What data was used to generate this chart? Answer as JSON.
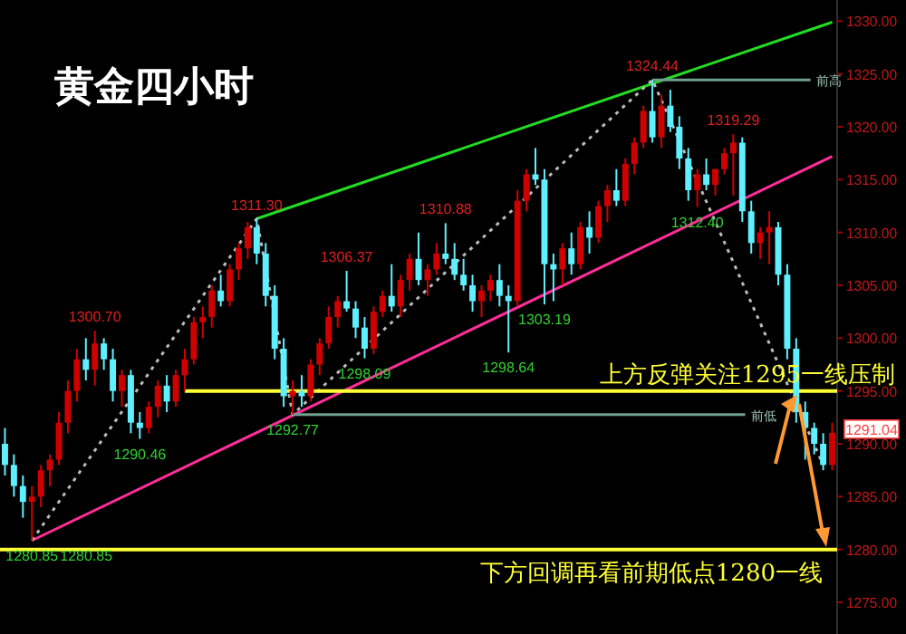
{
  "chart_data": {
    "type": "candlestick",
    "title": "黄金四小时",
    "tick_labels": "y",
    "grid": false,
    "ylim": [
      1272,
      1332
    ],
    "yticks": [
      {
        "value": 1275,
        "label": "1275.00"
      },
      {
        "value": 1280,
        "label": "1280.00"
      },
      {
        "value": 1285,
        "label": "1285.00"
      },
      {
        "value": 1290,
        "label": "1290.00"
      },
      {
        "value": 1295,
        "label": "1295.00"
      },
      {
        "value": 1300,
        "label": "1300.00"
      },
      {
        "value": 1305,
        "label": "1305.00"
      },
      {
        "value": 1310,
        "label": "1310.00"
      },
      {
        "value": 1315,
        "label": "1315.00"
      },
      {
        "value": 1320,
        "label": "1320.00"
      },
      {
        "value": 1325,
        "label": "1325.00"
      },
      {
        "value": 1330,
        "label": "1330.00"
      }
    ],
    "categories": [
      null,
      null,
      null,
      null,
      null,
      null,
      null,
      null,
      null,
      null,
      null,
      null,
      null,
      null,
      null,
      null,
      null,
      null,
      null,
      null,
      null,
      null,
      null,
      null,
      null,
      null,
      null,
      null,
      null,
      null,
      null,
      null,
      null,
      null,
      null,
      null,
      null,
      null,
      null,
      null,
      null,
      null,
      null,
      null,
      null,
      null,
      null,
      null,
      null,
      null,
      null,
      null,
      null,
      null,
      null,
      null,
      null,
      null,
      null,
      null,
      null,
      null,
      null,
      null,
      null,
      null,
      null,
      null,
      null,
      null,
      null,
      null,
      null,
      null,
      null,
      null,
      null,
      null,
      null,
      null,
      null,
      null,
      null,
      null,
      null,
      null,
      null,
      null,
      null,
      null,
      null,
      null,
      null
    ],
    "ohlc": [
      [
        1290,
        1291.5,
        1287,
        1288
      ],
      [
        1288,
        1289,
        1285,
        1286
      ],
      [
        1286,
        1287,
        1283,
        1284.5
      ],
      [
        1284.5,
        1286,
        1280.85,
        1285
      ],
      [
        1285,
        1288,
        1284,
        1287.5
      ],
      [
        1287.5,
        1289,
        1286,
        1288.5
      ],
      [
        1288.5,
        1293,
        1288,
        1292
      ],
      [
        1292,
        1296,
        1291,
        1295
      ],
      [
        1295,
        1299,
        1294,
        1298
      ],
      [
        1298,
        1300,
        1296,
        1297
      ],
      [
        1297,
        1300.7,
        1295.5,
        1299.5
      ],
      [
        1299.5,
        1300,
        1297,
        1298
      ],
      [
        1298,
        1299,
        1294,
        1295
      ],
      [
        1295,
        1297,
        1293.5,
        1296.5
      ],
      [
        1296.5,
        1297,
        1291,
        1292
      ],
      [
        1292,
        1293,
        1290.46,
        1291.5
      ],
      [
        1291.5,
        1294,
        1291,
        1293.5
      ],
      [
        1293.5,
        1296,
        1292.5,
        1295.5
      ],
      [
        1295.5,
        1296.5,
        1293,
        1294
      ],
      [
        1294,
        1297,
        1293.5,
        1296.5
      ],
      [
        1296.5,
        1299,
        1295,
        1298
      ],
      [
        1298,
        1302,
        1297.5,
        1301.5
      ],
      [
        1301.5,
        1303,
        1300,
        1302
      ],
      [
        1302,
        1305,
        1301,
        1304.5
      ],
      [
        1304.5,
        1306,
        1303,
        1303.5
      ],
      [
        1303.5,
        1307,
        1303,
        1306.5
      ],
      [
        1306.5,
        1309,
        1305.5,
        1308.5
      ],
      [
        1308.5,
        1311,
        1307.5,
        1310.5
      ],
      [
        1310.5,
        1311.3,
        1307,
        1308
      ],
      [
        1308,
        1309,
        1303,
        1304
      ],
      [
        1304,
        1305,
        1298,
        1299
      ],
      [
        1299,
        1300,
        1293.5,
        1294.5
      ],
      [
        1294.5,
        1296,
        1292.77,
        1295
      ],
      [
        1295,
        1296.5,
        1293.5,
        1294.5
      ],
      [
        1294.5,
        1298,
        1294,
        1297.5
      ],
      [
        1297.5,
        1300,
        1296.5,
        1299.5
      ],
      [
        1299.5,
        1303,
        1299,
        1302
      ],
      [
        1302,
        1304,
        1301,
        1303.5
      ],
      [
        1303.5,
        1306.37,
        1302.5,
        1302.8
      ],
      [
        1302.8,
        1303.5,
        1300,
        1301
      ],
      [
        1301,
        1302,
        1298.09,
        1299
      ],
      [
        1299,
        1303,
        1298.5,
        1302.5
      ],
      [
        1302.5,
        1304.5,
        1302,
        1304
      ],
      [
        1304,
        1307,
        1302.5,
        1303
      ],
      [
        1303,
        1306,
        1302,
        1305.5
      ],
      [
        1305.5,
        1308,
        1304.5,
        1307.5
      ],
      [
        1307.5,
        1310,
        1305,
        1305.5
      ],
      [
        1305.5,
        1307,
        1304,
        1306.5
      ],
      [
        1306.5,
        1309,
        1306,
        1308
      ],
      [
        1308,
        1310.88,
        1307,
        1307.5
      ],
      [
        1307.5,
        1309,
        1305.5,
        1306
      ],
      [
        1306,
        1307.5,
        1304.5,
        1305
      ],
      [
        1305,
        1306,
        1302.5,
        1303.5
      ],
      [
        1303.5,
        1305,
        1302,
        1304.5
      ],
      [
        1304.5,
        1306,
        1303.5,
        1305.5
      ],
      [
        1305.5,
        1307,
        1303,
        1304
      ],
      [
        1304,
        1305,
        1298.64,
        1303.5
      ],
      [
        1303.5,
        1314,
        1303,
        1313
      ],
      [
        1313,
        1316,
        1312,
        1315.5
      ],
      [
        1315.5,
        1318,
        1314.5,
        1315
      ],
      [
        1315,
        1316,
        1303.19,
        1307
      ],
      [
        1307,
        1308,
        1303.5,
        1306.5
      ],
      [
        1306.5,
        1309,
        1305,
        1308.5
      ],
      [
        1308.5,
        1310,
        1306,
        1307
      ],
      [
        1307,
        1311,
        1306.5,
        1310.5
      ],
      [
        1310.5,
        1312,
        1308,
        1309.5
      ],
      [
        1309.5,
        1313,
        1309,
        1312.5
      ],
      [
        1312.5,
        1314.5,
        1311,
        1314
      ],
      [
        1314,
        1316,
        1312.5,
        1313
      ],
      [
        1313,
        1317,
        1312.5,
        1316.5
      ],
      [
        1316.5,
        1319,
        1315.5,
        1318.5
      ],
      [
        1318.5,
        1322,
        1318,
        1321.5
      ],
      [
        1321.5,
        1324.44,
        1318.5,
        1319
      ],
      [
        1319,
        1323,
        1318,
        1322
      ],
      [
        1322,
        1323.5,
        1319.5,
        1320
      ],
      [
        1320,
        1321,
        1316,
        1317
      ],
      [
        1317,
        1318,
        1313,
        1314
      ],
      [
        1314,
        1316,
        1312.4,
        1315.5
      ],
      [
        1315.5,
        1317,
        1314,
        1314.5
      ],
      [
        1314.5,
        1316,
        1313.5,
        1316
      ],
      [
        1316,
        1318,
        1315.5,
        1317.5
      ],
      [
        1317.5,
        1319.29,
        1313.5,
        1318.5
      ],
      [
        1318.5,
        1319,
        1311,
        1312
      ],
      [
        1312,
        1313,
        1308,
        1309
      ],
      [
        1309,
        1310.5,
        1307.5,
        1310
      ],
      [
        1310,
        1312,
        1307,
        1310.5
      ],
      [
        1310.5,
        1311,
        1305,
        1306
      ],
      [
        1306,
        1307,
        1298,
        1299
      ],
      [
        1299,
        1300,
        1292,
        1293
      ],
      [
        1293,
        1294,
        1288.5,
        1291.5
      ],
      [
        1291.5,
        1292,
        1289,
        1290
      ],
      [
        1290,
        1291,
        1287.5,
        1288
      ],
      [
        1288,
        1292,
        1287.5,
        1291.04
      ]
    ],
    "colors": [
      "#5ff0ff",
      "#5ff0ff",
      "#5ff0ff",
      "#d00000",
      "#d00000",
      "#d00000",
      "#d00000",
      "#d00000",
      "#d00000",
      "#5ff0ff",
      "#d00000",
      "#5ff0ff",
      "#5ff0ff",
      "#d00000",
      "#5ff0ff",
      "#5ff0ff",
      "#d00000",
      "#d00000",
      "#5ff0ff",
      "#d00000",
      "#d00000",
      "#d00000",
      "#d00000",
      "#d00000",
      "#5ff0ff",
      "#d00000",
      "#d00000",
      "#d00000",
      "#5ff0ff",
      "#5ff0ff",
      "#5ff0ff",
      "#5ff0ff",
      "#d00000",
      "#5ff0ff",
      "#d00000",
      "#d00000",
      "#d00000",
      "#d00000",
      "#5ff0ff",
      "#5ff0ff",
      "#5ff0ff",
      "#d00000",
      "#d00000",
      "#5ff0ff",
      "#d00000",
      "#d00000",
      "#5ff0ff",
      "#d00000",
      "#d00000",
      "#5ff0ff",
      "#5ff0ff",
      "#5ff0ff",
      "#5ff0ff",
      "#d00000",
      "#d00000",
      "#5ff0ff",
      "#5ff0ff",
      "#d00000",
      "#d00000",
      "#5ff0ff",
      "#5ff0ff",
      "#5ff0ff",
      "#d00000",
      "#5ff0ff",
      "#d00000",
      "#5ff0ff",
      "#d00000",
      "#d00000",
      "#5ff0ff",
      "#d00000",
      "#d00000",
      "#d00000",
      "#5ff0ff",
      "#d00000",
      "#5ff0ff",
      "#5ff0ff",
      "#5ff0ff",
      "#d00000",
      "#5ff0ff",
      "#d00000",
      "#d00000",
      "#d00000",
      "#5ff0ff",
      "#5ff0ff",
      "#d00000",
      "#d00000",
      "#5ff0ff",
      "#5ff0ff",
      "#5ff0ff",
      "#5ff0ff",
      "#5ff0ff",
      "#5ff0ff",
      "#d00000"
    ],
    "series": [
      {
        "type": "line",
        "color": "#22dd22",
        "line_style": "solid",
        "values": [
          null,
          null,
          null,
          null,
          null,
          null,
          null,
          null,
          null,
          null,
          null,
          null,
          null,
          null,
          null,
          null,
          null,
          null,
          null,
          null,
          null,
          null,
          null,
          null,
          null,
          null,
          null,
          null,
          1311.3,
          null,
          null,
          null,
          null,
          null,
          null,
          null,
          null,
          null,
          null,
          null,
          null,
          null,
          null,
          null,
          null,
          null,
          null,
          null,
          null,
          null,
          null,
          null,
          null,
          null,
          null,
          null,
          null,
          null,
          null,
          null,
          null,
          null,
          null,
          null,
          null,
          null,
          null,
          null,
          null,
          null,
          null,
          null,
          null,
          null,
          null,
          null,
          null,
          null,
          null,
          null,
          null,
          null,
          null,
          null,
          null,
          null,
          null,
          null,
          null,
          null,
          null,
          null,
          1329.9
        ]
      },
      {
        "type": "line",
        "color": "#ff2d9a",
        "line_style": "solid",
        "values": [
          null,
          null,
          null,
          1280.85,
          null,
          null,
          null,
          null,
          null,
          null,
          null,
          null,
          null,
          null,
          null,
          null,
          null,
          null,
          null,
          null,
          null,
          null,
          null,
          null,
          null,
          null,
          null,
          null,
          null,
          null,
          null,
          null,
          null,
          null,
          null,
          null,
          null,
          null,
          null,
          null,
          null,
          null,
          null,
          null,
          null,
          null,
          null,
          null,
          null,
          null,
          null,
          null,
          null,
          null,
          null,
          null,
          null,
          null,
          null,
          null,
          null,
          null,
          null,
          null,
          null,
          null,
          null,
          null,
          null,
          null,
          null,
          null,
          null,
          null,
          null,
          null,
          null,
          null,
          null,
          null,
          null,
          null,
          null,
          null,
          null,
          null,
          null,
          null,
          null,
          null,
          null,
          null,
          1317.2
        ]
      },
      {
        "type": "line",
        "color": "#bbbbbb",
        "line_style": "dotted",
        "values": [
          null,
          null,
          null,
          1280.85,
          null,
          null,
          null,
          null,
          null,
          null,
          null,
          null,
          null,
          null,
          null,
          null,
          null,
          null,
          null,
          null,
          null,
          null,
          null,
          null,
          null,
          null,
          null,
          null,
          1311.3,
          null,
          null,
          null,
          1292.77,
          null,
          null,
          null,
          null,
          null,
          null,
          null,
          null,
          null,
          null,
          null,
          null,
          null,
          null,
          null,
          null,
          null,
          null,
          null,
          null,
          null,
          null,
          null,
          null,
          null,
          null,
          null,
          null,
          null,
          null,
          null,
          null,
          null,
          null,
          null,
          null,
          null,
          null,
          null,
          1324.44,
          null,
          null,
          null,
          null,
          null,
          null,
          null,
          null,
          null,
          null,
          null,
          null,
          null,
          null,
          null,
          null,
          null,
          null,
          1288,
          null
        ]
      }
    ],
    "ref_lines": [
      {
        "axis": "y",
        "value": 1280,
        "label": null,
        "color": "#ffff33",
        "line_style": "solid"
      },
      {
        "axis": "y",
        "value": 1295,
        "label": null,
        "color": "#ffff33",
        "line_style": "solid"
      },
      {
        "axis": "y",
        "value": 1324.44,
        "label": "前高",
        "color": "#6f9f8f",
        "line_style": "solid"
      },
      {
        "axis": "y",
        "value": 1292.77,
        "label": "前低",
        "color": "#6f9f8f",
        "line_style": "solid"
      }
    ],
    "annotations": [
      {
        "text": "1280.85",
        "y": 1280.85
      },
      {
        "text": "1280.85",
        "y": 1280.85
      },
      {
        "text": "1300.70",
        "y": 1300.7
      },
      {
        "text": "1290.46",
        "y": 1290.46
      },
      {
        "text": "1311.30",
        "y": 1311.3
      },
      {
        "text": "1292.77",
        "y": 1292.77
      },
      {
        "text": "1306.37",
        "y": 1306.37
      },
      {
        "text": "1298.09",
        "y": 1298.09
      },
      {
        "text": "1310.88",
        "y": 1310.88
      },
      {
        "text": "1298.64",
        "y": 1298.64
      },
      {
        "text": "1303.19",
        "y": 1303.19
      },
      {
        "text": "1324.44",
        "y": 1324.44
      },
      {
        "text": "1319.29",
        "y": 1319.29
      },
      {
        "text": "1312.40",
        "y": 1312.4
      },
      "1291.04",
      {
        "text": "上方反弹关注1295一线压制",
        "y": 1295
      },
      {
        "text": "下方回调再看前期低点1280一线",
        "y": 1280
      }
    ]
  }
}
